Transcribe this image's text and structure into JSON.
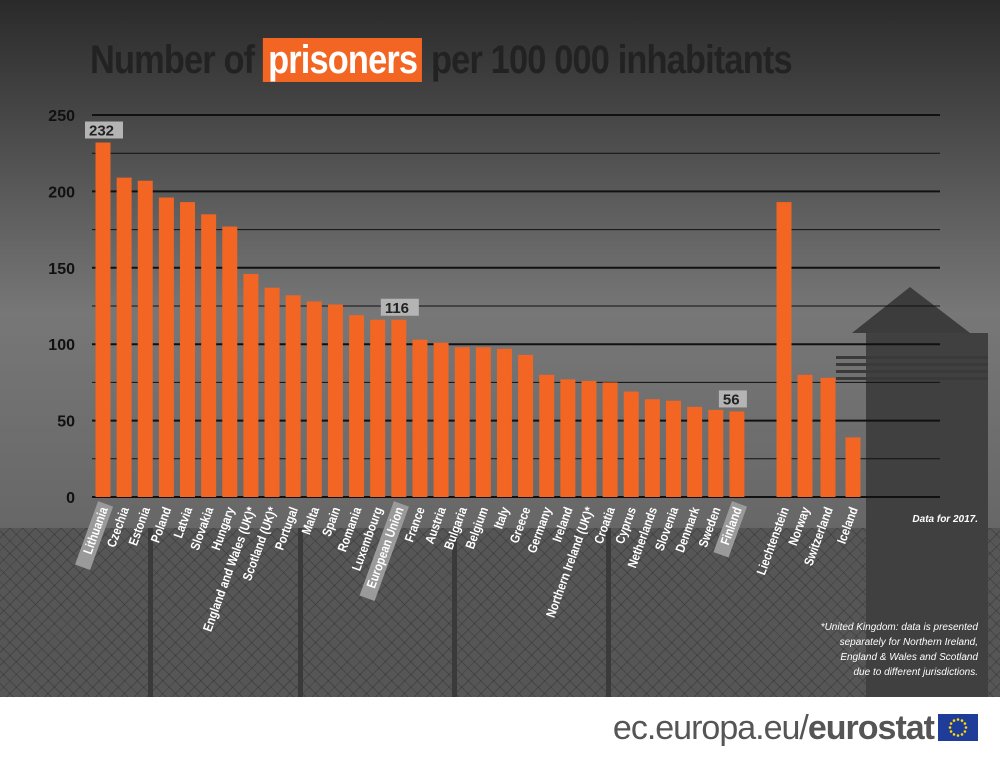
{
  "title": {
    "before": "Number of",
    "highlight": "prisoners",
    "after": "per  100 000 inhabitants"
  },
  "chart_data": {
    "type": "bar",
    "categories": [
      "Lithuania",
      "Czechia",
      "Estonia",
      "Poland",
      "Latvia",
      "Slovakia",
      "Hungary",
      "England and Wales (UK)*",
      "Scotland (UK)*",
      "Portugal",
      "Malta",
      "Spain",
      "Romania",
      "Luxembourg",
      "European Union",
      "France",
      "Austria",
      "Bulgaria",
      "Belgium",
      "Italy",
      "Greece",
      "Germany",
      "Ireland",
      "Northern Ireland (UK)*",
      "Croatia",
      "Cyprus",
      "Netherlands",
      "Slovenia",
      "Denmark",
      "Sweden",
      "Finland",
      "Liechtenstein",
      "Norway",
      "Switzerland",
      "Iceland"
    ],
    "values": [
      232,
      209,
      207,
      196,
      193,
      185,
      177,
      146,
      137,
      132,
      128,
      126,
      119,
      116,
      116,
      103,
      101,
      98,
      98,
      97,
      93,
      80,
      77,
      76,
      75,
      69,
      64,
      63,
      59,
      57,
      56,
      193,
      80,
      78,
      39
    ],
    "data_labels": {
      "Lithuania": "232",
      "European Union": "116",
      "Finland": "56"
    },
    "highlighted": [
      "Lithuania",
      "European Union",
      "Finland"
    ],
    "yticks": [
      "0",
      "50",
      "100",
      "150",
      "200",
      "250"
    ],
    "ylim": [
      0,
      250
    ],
    "grid": true,
    "bar_color": "#f26522"
  },
  "notes": {
    "year": "Data for 2017.",
    "footnote": [
      "*United Kingdom: data is presented",
      "separately for Northern Ireland,",
      "England & Wales and Scotland",
      "due to different jurisdictions."
    ]
  },
  "footer": {
    "domain": "ec.europa.eu/",
    "brand": "eurostat"
  }
}
